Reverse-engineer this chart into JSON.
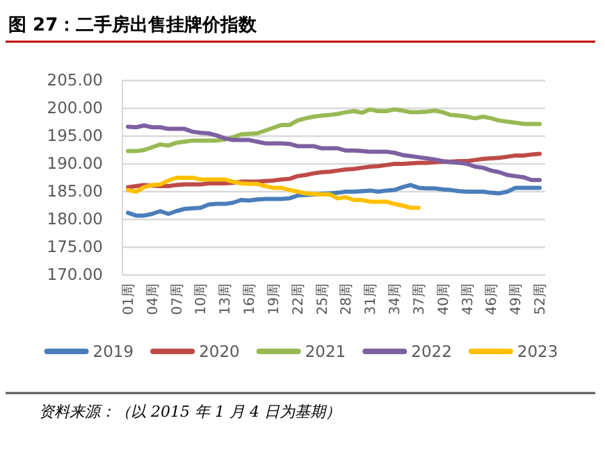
{
  "chart_data": {
    "type": "line",
    "title": "图 27：二手房出售挂牌价指数",
    "categories": [
      "01周",
      null,
      null,
      "04周",
      null,
      null,
      "07周",
      null,
      null,
      "10周",
      null,
      null,
      "13周",
      null,
      null,
      "16周",
      null,
      null,
      "19周",
      null,
      null,
      "22周",
      null,
      null,
      "25周",
      null,
      null,
      "28周",
      null,
      null,
      "31周",
      null,
      null,
      "34周",
      null,
      null,
      "37周",
      null,
      null,
      "40周",
      null,
      null,
      "43周",
      null,
      null,
      "46周",
      null,
      null,
      "49周",
      null,
      null,
      "52周"
    ],
    "series": [
      {
        "name": "2019",
        "color": "#4a7ebb",
        "values": [
          181.2,
          180.7,
          180.7,
          181.0,
          181.5,
          181.0,
          181.5,
          181.9,
          182.0,
          182.1,
          182.7,
          182.8,
          182.8,
          183.0,
          183.5,
          183.4,
          183.6,
          183.7,
          183.7,
          183.7,
          183.8,
          184.3,
          184.4,
          184.5,
          184.6,
          184.7,
          184.8,
          185.0,
          185.0,
          185.1,
          185.2,
          185.0,
          185.2,
          185.3,
          185.8,
          186.2,
          185.7,
          185.6,
          185.6,
          185.4,
          185.3,
          185.1,
          185.0,
          185.0,
          185.0,
          184.8,
          184.7,
          185.0,
          185.7,
          185.7,
          185.7,
          185.7
        ]
      },
      {
        "name": "2020",
        "color": "#be4b48",
        "values": [
          185.8,
          186.0,
          186.2,
          186.1,
          186.0,
          186.0,
          186.2,
          186.3,
          186.3,
          186.3,
          186.5,
          186.5,
          186.5,
          186.6,
          186.8,
          186.8,
          186.8,
          186.9,
          187.0,
          187.2,
          187.3,
          187.8,
          188.0,
          188.3,
          188.5,
          188.6,
          188.8,
          189.0,
          189.1,
          189.3,
          189.5,
          189.6,
          189.8,
          190.0,
          190.0,
          190.1,
          190.2,
          190.2,
          190.3,
          190.4,
          190.4,
          190.5,
          190.5,
          190.7,
          190.9,
          191.0,
          191.1,
          191.3,
          191.5,
          191.5,
          191.7,
          191.8
        ]
      },
      {
        "name": "2021",
        "color": "#98b954",
        "values": [
          192.3,
          192.3,
          192.5,
          193.0,
          193.5,
          193.3,
          193.8,
          194.0,
          194.2,
          194.2,
          194.2,
          194.2,
          194.4,
          194.8,
          195.3,
          195.4,
          195.5,
          196.0,
          196.5,
          197.0,
          197.0,
          197.8,
          198.2,
          198.5,
          198.7,
          198.8,
          199.0,
          199.3,
          199.5,
          199.2,
          199.8,
          199.5,
          199.5,
          199.8,
          199.6,
          199.3,
          199.3,
          199.4,
          199.6,
          199.3,
          198.8,
          198.7,
          198.5,
          198.2,
          198.5,
          198.2,
          197.8,
          197.6,
          197.4,
          197.2,
          197.2,
          197.2
        ]
      },
      {
        "name": "2022",
        "color": "#7d60a0",
        "values": [
          196.7,
          196.6,
          196.9,
          196.6,
          196.6,
          196.3,
          196.3,
          196.3,
          195.8,
          195.6,
          195.5,
          195.1,
          194.6,
          194.3,
          194.3,
          194.3,
          194.0,
          193.7,
          193.7,
          193.7,
          193.6,
          193.2,
          193.2,
          193.2,
          192.8,
          192.8,
          192.8,
          192.4,
          192.4,
          192.3,
          192.2,
          192.2,
          192.2,
          192.0,
          191.6,
          191.4,
          191.2,
          191.0,
          190.8,
          190.5,
          190.3,
          190.2,
          190.0,
          189.5,
          189.3,
          188.8,
          188.5,
          188.0,
          187.8,
          187.6,
          187.1,
          187.1
        ]
      },
      {
        "name": "2023",
        "color": "#ffc000",
        "values": [
          185.3,
          185.0,
          185.8,
          186.2,
          186.3,
          187.0,
          187.5,
          187.5,
          187.5,
          187.2,
          187.2,
          187.2,
          187.2,
          186.8,
          186.5,
          186.4,
          186.4,
          186.0,
          185.7,
          185.7,
          185.3,
          185.0,
          184.7,
          184.6,
          184.5,
          184.5,
          183.8,
          184.0,
          183.5,
          183.5,
          183.2,
          183.2,
          183.2,
          182.8,
          182.5,
          182.1,
          182.1,
          null,
          null,
          null,
          null,
          null,
          null,
          null,
          null,
          null,
          null,
          null,
          null,
          null,
          null,
          null
        ]
      }
    ],
    "ylim": [
      170,
      205
    ],
    "yticks": [
      {
        "value": 170,
        "label": "170.00"
      },
      {
        "value": 175,
        "label": "175.00"
      },
      {
        "value": 180,
        "label": "180.00"
      },
      {
        "value": 185,
        "label": "185.00"
      },
      {
        "value": 190,
        "label": "190.00"
      },
      {
        "value": 195,
        "label": "195.00"
      },
      {
        "value": 200,
        "label": "200.00"
      },
      {
        "value": 205,
        "label": "205.00"
      }
    ],
    "grid": "y",
    "legend": "bottom",
    "marker": "none",
    "line_style": "solid",
    "annotations": [
      "资料来源：（以 2015 年 1 月 4 日为基期）"
    ]
  }
}
